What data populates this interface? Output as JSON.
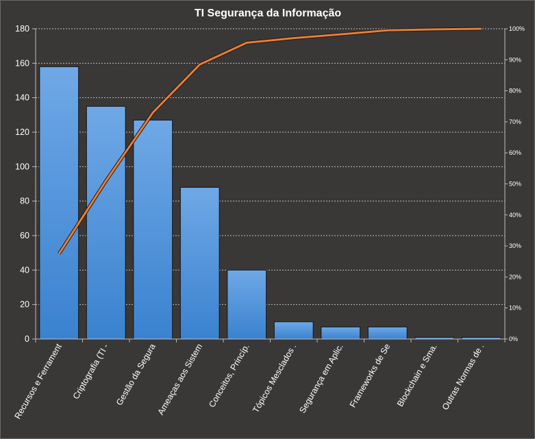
{
  "chart_data": {
    "type": "bar",
    "title": "TI Segurança da Informação",
    "categories": [
      "Recursos e Ferrament",
      "Criptografia (TI -",
      "Gestão da Segura",
      "Ameaças aos Sistem",
      "Conceitos, Princíp.",
      "Tópicos Mesclados .",
      "Segurança em Aplic.",
      "Frameworks de Se",
      "Blockchain e Sma.",
      "Outras Normas de ."
    ],
    "series": [
      {
        "values": [
          158,
          135,
          127,
          88,
          40,
          10,
          7,
          7,
          1,
          1
        ],
        "color": "#4a8fd8"
      },
      {
        "values": [
          27.5,
          51,
          73,
          88.5,
          95.5,
          97,
          98.2,
          99.5,
          99.8,
          100
        ],
        "color": "#ed7d31",
        "axis": "secondary"
      }
    ],
    "yticks": [
      "0",
      "20",
      "40",
      "60",
      "80",
      "100",
      "120",
      "140",
      "160",
      "180"
    ],
    "ylim": [
      0,
      180
    ],
    "y2ticks": [
      "0%",
      "10%",
      "20%",
      "30%",
      "40%",
      "50%",
      "60%",
      "70%",
      "80%",
      "90%",
      "100%"
    ],
    "y2lim": [
      0,
      100
    ],
    "grid": true,
    "legend": "none"
  }
}
